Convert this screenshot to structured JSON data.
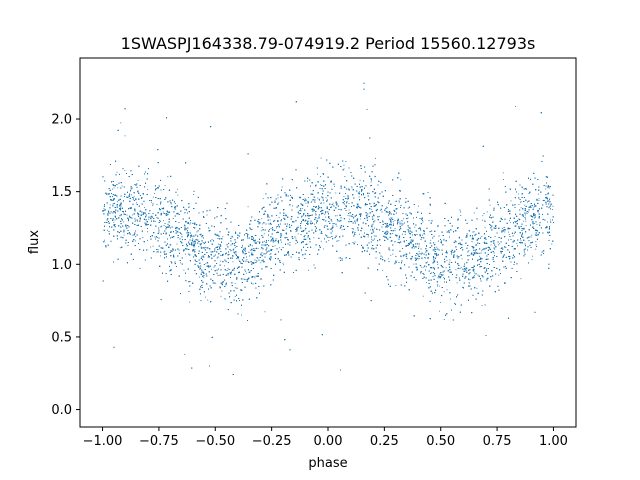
{
  "chart_data": {
    "type": "scatter",
    "title": "1SWASPJ164338.79-074919.2 Period 15560.12793s",
    "xlabel": "phase",
    "ylabel": "flux",
    "xlim": [
      -1.1,
      1.1
    ],
    "ylim": [
      -0.12,
      2.42
    ],
    "x_ticks": [
      -1.0,
      -0.75,
      -0.5,
      -0.25,
      0.0,
      0.25,
      0.5,
      0.75,
      1.0
    ],
    "x_tick_labels": [
      "−1.00",
      "−0.75",
      "−0.50",
      "−0.25",
      "0.00",
      "0.25",
      "0.50",
      "0.75",
      "1.00"
    ],
    "y_ticks": [
      0.0,
      0.5,
      1.0,
      1.5,
      2.0
    ],
    "y_tick_labels": [
      "0.0",
      "0.5",
      "1.0",
      "1.5",
      "2.0"
    ],
    "grid": false,
    "marker_color": "#1f77b4",
    "series": [
      {
        "phase_range": [
          -1.0,
          1.0
        ],
        "point_count": 16000,
        "phase_vs_median_flux": [
          [
            -1.0,
            1.35
          ],
          [
            -0.9,
            1.36
          ],
          [
            -0.8,
            1.33
          ],
          [
            -0.7,
            1.25
          ],
          [
            -0.6,
            1.12
          ],
          [
            -0.5,
            1.03
          ],
          [
            -0.4,
            1.02
          ],
          [
            -0.3,
            1.1
          ],
          [
            -0.2,
            1.22
          ],
          [
            -0.1,
            1.32
          ],
          [
            0.0,
            1.35
          ],
          [
            0.1,
            1.36
          ],
          [
            0.2,
            1.33
          ],
          [
            0.3,
            1.25
          ],
          [
            0.4,
            1.12
          ],
          [
            0.5,
            1.03
          ],
          [
            0.6,
            1.02
          ],
          [
            0.7,
            1.1
          ],
          [
            0.8,
            1.22
          ],
          [
            0.9,
            1.32
          ],
          [
            1.0,
            1.35
          ]
        ],
        "flux_scatter_sigma": 0.15,
        "flux_range_shown": [
          0.0,
          2.35
        ]
      }
    ]
  }
}
